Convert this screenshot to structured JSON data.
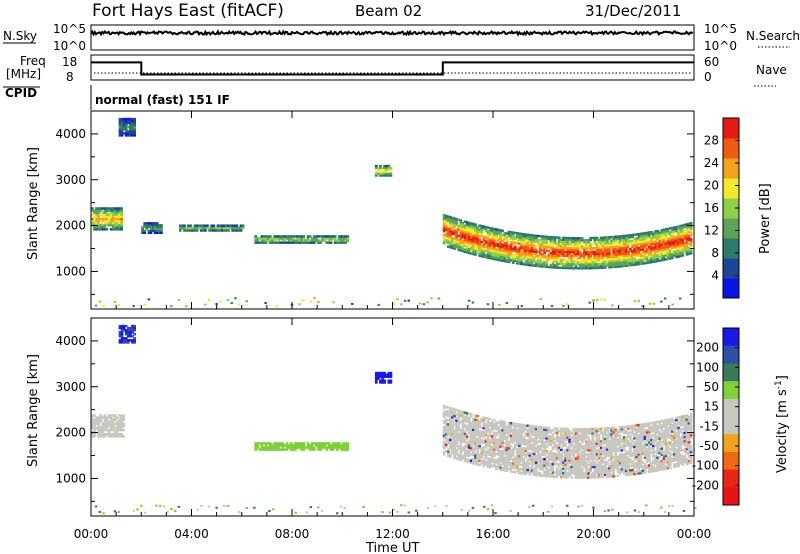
{
  "header": {
    "station": "Fort Hays East (fitACF)",
    "beam": "Beam 02",
    "date": "31/Dec/2011"
  },
  "top_panels": {
    "nsky_label": "N.Sky",
    "nsky_ticks": [
      "10^5",
      "10^0"
    ],
    "nsearch_label": "N.Search",
    "nsearch_ticks": [
      "10^5",
      "10^0"
    ],
    "freq_label_line1": "Freq",
    "freq_label_line2": "[MHz]",
    "freq_ticks": [
      "18",
      "8"
    ],
    "nave_label": "Nave",
    "nave_ticks": [
      "60",
      "0"
    ],
    "cpid_label": "CPID",
    "cpid_text": "normal (fast) 151 IF"
  },
  "colors": {
    "power_scale": [
      "#0a14e6",
      "#1e4696",
      "#2e7b6b",
      "#5fa35a",
      "#8fd04a",
      "#f2e82e",
      "#f2a21e",
      "#ef5a14",
      "#e61a14"
    ],
    "velocity_scale": [
      "#1a1ae6",
      "#2e4fa3",
      "#3a7a5a",
      "#7fd03a",
      "#c8c8c0",
      "#c8c8c0",
      "#f2a21e",
      "#ef6a14",
      "#e62814",
      "#e61414"
    ],
    "gs_grey": "#c8c8c0"
  },
  "chart_data": [
    {
      "type": "heatmap",
      "name": "power",
      "ylabel": "Slant Range [km]",
      "yticks": [
        "1000",
        "2000",
        "3000",
        "4000"
      ],
      "ylim": [
        180,
        4500
      ],
      "xlim": [
        0,
        24
      ],
      "colorbar_label": "Power [dB]",
      "colorbar_ticks": [
        "4",
        "8",
        "12",
        "16",
        "20",
        "24",
        "28"
      ],
      "regions": [
        {
          "start": 0.0,
          "end": 1.2,
          "center": 2150,
          "width": 500,
          "peak_value": 24
        },
        {
          "start": 1.1,
          "end": 1.7,
          "center": 4150,
          "width": 400,
          "peak_value": 10
        },
        {
          "start": 2.0,
          "end": 2.8,
          "center": 1950,
          "width": 250,
          "peak_value": 12
        },
        {
          "start": 3.5,
          "end": 6.0,
          "center": 1950,
          "width": 150,
          "peak_value": 14
        },
        {
          "start": 6.5,
          "end": 10.2,
          "center": 1700,
          "width": 180,
          "peak_value": 18
        },
        {
          "start": 11.3,
          "end": 11.9,
          "center": 3200,
          "width": 250,
          "peak_value": 22
        },
        {
          "start": 14.0,
          "end": 23.9,
          "center": 1400,
          "width": 700,
          "peak_value": 30
        }
      ]
    },
    {
      "type": "heatmap",
      "name": "velocity",
      "ylabel": "Slant Range [km]",
      "yticks": [
        "1000",
        "2000",
        "3000",
        "4000"
      ],
      "ylim": [
        180,
        4500
      ],
      "xlim": [
        0,
        24
      ],
      "colorbar_label": "Velocity [m s^-1]",
      "colorbar_ticks": [
        "200",
        "100",
        "50",
        "15",
        "-15",
        "-50",
        "-100",
        "-200"
      ],
      "regions": [
        {
          "start": 0.0,
          "end": 1.3,
          "center": 2150,
          "width": 500,
          "peak_value": -10
        },
        {
          "start": 1.1,
          "end": 1.7,
          "center": 4150,
          "width": 400,
          "peak_value": 150
        },
        {
          "start": 6.5,
          "end": 10.2,
          "center": 1700,
          "width": 180,
          "peak_value": 40
        },
        {
          "start": 11.3,
          "end": 11.9,
          "center": 3200,
          "width": 250,
          "peak_value": 180
        },
        {
          "start": 14.0,
          "end": 23.9,
          "center": 1550,
          "width": 1100,
          "peak_value": 5
        }
      ]
    }
  ],
  "xaxis": {
    "label": "Time UT",
    "ticks": [
      "00:00",
      "04:00",
      "08:00",
      "12:00",
      "16:00",
      "20:00",
      "00:00"
    ]
  },
  "frequency_series": {
    "x": [
      0,
      2.0,
      2.0,
      14.0,
      14.0,
      24.0
    ],
    "y": [
      16,
      16,
      10.5,
      10.5,
      16,
      16
    ]
  }
}
